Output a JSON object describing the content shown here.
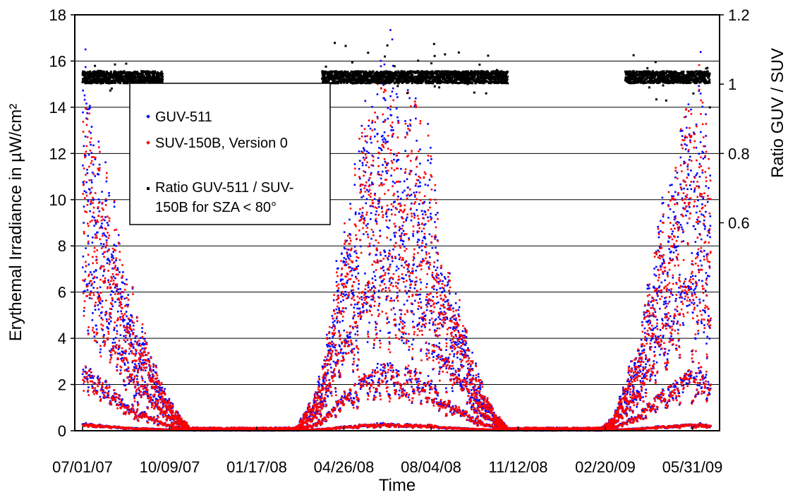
{
  "chart_data": {
    "type": "scatter",
    "xlabel": "Time",
    "ylabel": "Erythemal Irradiance in µW/cm²",
    "ylabel_right": "Ratio GUV / SUV",
    "ylim": [
      0,
      18
    ],
    "ylim_right": [
      0,
      1.2
    ],
    "y_ticks": [
      "0",
      "2",
      "4",
      "6",
      "8",
      "10",
      "12",
      "14",
      "16",
      "18"
    ],
    "y_ticks_right": [
      "0.6",
      "0.8",
      "1",
      "1.2"
    ],
    "x_ticks": [
      "07/01/07",
      "10/09/07",
      "01/17/08",
      "04/26/08",
      "08/04/08",
      "11/12/08",
      "02/20/09",
      "05/31/09"
    ],
    "grid": true,
    "legend_position": "upper-left",
    "series": [
      {
        "name": "GUV-511",
        "color": "#0000ff",
        "marker": "diamond",
        "envelope": [
          [
            "07/01/07",
            16.9
          ],
          [
            "07/15/07",
            13.5
          ],
          [
            "08/01/07",
            10.8
          ],
          [
            "08/15/07",
            7.5
          ],
          [
            "09/01/07",
            5.5
          ],
          [
            "09/15/07",
            3.7
          ],
          [
            "10/01/07",
            1.8
          ],
          [
            "10/15/07",
            0.9
          ],
          [
            "11/01/07",
            0.1
          ],
          [
            "03/01/08",
            0.1
          ],
          [
            "03/15/08",
            1.0
          ],
          [
            "04/01/08",
            2.8
          ],
          [
            "04/15/08",
            6.5
          ],
          [
            "05/01/08",
            10.0
          ],
          [
            "05/15/08",
            12.8
          ],
          [
            "06/01/08",
            15.2
          ],
          [
            "06/21/08",
            17.6
          ],
          [
            "07/01/08",
            15.0
          ],
          [
            "07/15/08",
            15.0
          ],
          [
            "08/01/08",
            13.0
          ],
          [
            "08/15/08",
            8.0
          ],
          [
            "09/01/08",
            6.0
          ],
          [
            "09/15/08",
            4.0
          ],
          [
            "10/01/08",
            2.0
          ],
          [
            "10/15/08",
            0.8
          ],
          [
            "10/31/08",
            0.1
          ],
          [
            "02/15/09",
            0.1
          ],
          [
            "03/01/09",
            0.6
          ],
          [
            "03/15/09",
            2.2
          ],
          [
            "04/01/09",
            4.5
          ],
          [
            "04/15/09",
            7.5
          ],
          [
            "05/01/09",
            10.5
          ],
          [
            "05/15/09",
            12.5
          ],
          [
            "05/31/09",
            15.0
          ],
          [
            "06/10/09",
            16.6
          ],
          [
            "06/20/09",
            13.0
          ]
        ]
      },
      {
        "name": "SUV-150B, Version 0",
        "color": "#ff0000",
        "marker": "diamond",
        "envelope": [
          [
            "07/01/07",
            15.1
          ],
          [
            "07/15/07",
            13.2
          ],
          [
            "08/01/07",
            10.7
          ],
          [
            "08/15/07",
            7.4
          ],
          [
            "09/01/07",
            5.4
          ],
          [
            "09/15/07",
            3.6
          ],
          [
            "10/01/07",
            1.8
          ],
          [
            "10/15/07",
            0.9
          ],
          [
            "11/01/07",
            0.1
          ],
          [
            "03/01/08",
            0.1
          ],
          [
            "03/15/08",
            1.0
          ],
          [
            "04/01/08",
            2.8
          ],
          [
            "04/15/08",
            6.4
          ],
          [
            "05/01/08",
            9.8
          ],
          [
            "05/15/08",
            12.6
          ],
          [
            "06/01/08",
            15.0
          ],
          [
            "06/21/08",
            15.3
          ],
          [
            "07/01/08",
            15.0
          ],
          [
            "07/15/08",
            15.0
          ],
          [
            "08/01/08",
            12.8
          ],
          [
            "08/15/08",
            7.9
          ],
          [
            "09/01/08",
            5.9
          ],
          [
            "09/15/08",
            3.9
          ],
          [
            "10/01/08",
            2.0
          ],
          [
            "10/15/08",
            0.8
          ],
          [
            "10/31/08",
            0.1
          ],
          [
            "02/15/09",
            0.1
          ],
          [
            "03/01/09",
            0.6
          ],
          [
            "03/15/09",
            2.2
          ],
          [
            "04/01/09",
            4.4
          ],
          [
            "04/15/09",
            7.4
          ],
          [
            "05/01/09",
            10.4
          ],
          [
            "05/15/09",
            12.4
          ],
          [
            "05/31/09",
            14.8
          ],
          [
            "06/10/09",
            16.6
          ],
          [
            "06/20/09",
            13.0
          ]
        ]
      },
      {
        "name": "Ratio GUV-511 / SUV-150B for SZA < 80°",
        "color": "#000000",
        "marker": "square",
        "axis": "right",
        "segments": [
          {
            "start": "07/01/07",
            "end": "10/01/07",
            "typical": 1.02,
            "min": 0.97,
            "max": 1.07
          },
          {
            "start": "04/01/08",
            "end": "10/31/08",
            "typical": 1.02,
            "min": 0.97,
            "max": 1.12
          },
          {
            "start": "03/15/09",
            "end": "06/20/09",
            "typical": 1.02,
            "min": 0.93,
            "max": 1.1
          }
        ]
      }
    ],
    "legend": [
      {
        "label": "GUV-511"
      },
      {
        "label": "SUV-150B, Version 0"
      },
      {
        "label": "Ratio GUV-511 / SUV-",
        "label_cont": "150B for SZA < 80°"
      }
    ]
  }
}
